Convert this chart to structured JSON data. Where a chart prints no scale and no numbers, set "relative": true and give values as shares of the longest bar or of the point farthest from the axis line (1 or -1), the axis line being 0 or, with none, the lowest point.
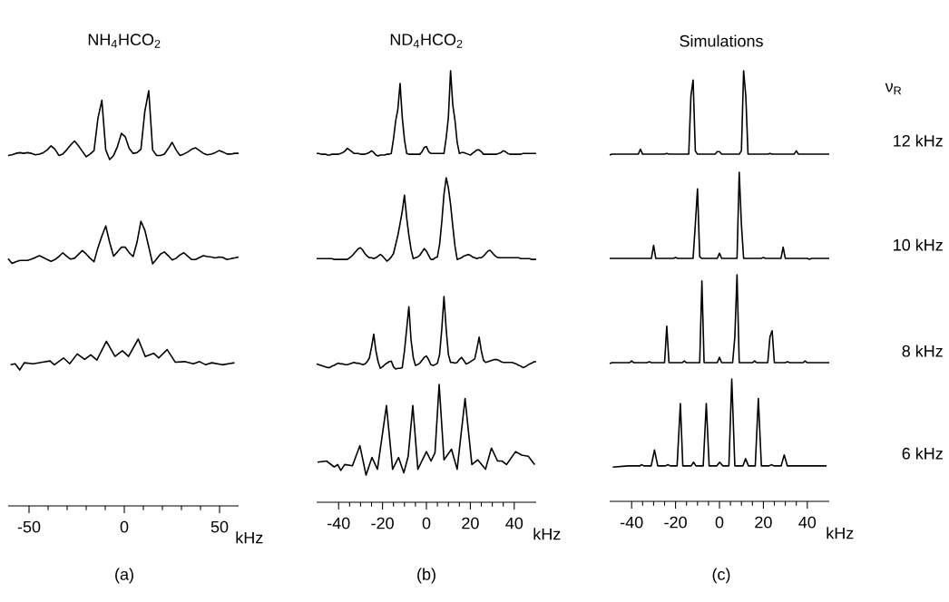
{
  "chart_data": [
    {
      "type": "line",
      "relative": true,
      "title": "NH$_{4}$HCO$_{2}$",
      "tick_labels": false,
      "color": "#000000",
      "categories": [
        null,
        null,
        null,
        null,
        null,
        null,
        null,
        null,
        null,
        null,
        null,
        null,
        null,
        null,
        null,
        null,
        null,
        null,
        null,
        null,
        null,
        null,
        null,
        null,
        null,
        null,
        null,
        null,
        null,
        null,
        null,
        null,
        null,
        null,
        null,
        null,
        null,
        null,
        null,
        null,
        null,
        null,
        null,
        null,
        null,
        null,
        null,
        null,
        null,
        null,
        null,
        null,
        null,
        null,
        null,
        null,
        null,
        null,
        null,
        null
      ],
      "values": [
        0.06,
        0.07,
        0.09,
        0.1,
        0.09,
        0.1,
        0.09,
        0.07,
        0.08,
        0.1,
        0.14,
        0.2,
        0.15,
        0.06,
        0.08,
        0.14,
        0.21,
        0.27,
        0.2,
        0.12,
        0.04,
        0.08,
        0.13,
        0.6,
        0.86,
        0.14,
        0.0,
        0.06,
        0.19,
        0.38,
        0.33,
        0.16,
        0.09,
        0.1,
        0.15,
        0.7,
        1.0,
        0.14,
        0.06,
        0.06,
        0.08,
        0.16,
        0.25,
        0.14,
        0.06,
        0.08,
        0.11,
        0.15,
        0.17,
        0.13,
        0.09,
        0.07,
        0.08,
        0.1,
        0.13,
        0.11,
        0.08,
        0.08,
        0.09,
        0.09
      ]
    },
    {
      "type": "line",
      "relative": true,
      "tick_labels": false,
      "color": "#000000",
      "categories": [
        null,
        null,
        null,
        null,
        null,
        null,
        null,
        null,
        null,
        null,
        null,
        null,
        null,
        null,
        null,
        null,
        null,
        null,
        null,
        null,
        null,
        null,
        null,
        null,
        null,
        null,
        null,
        null,
        null,
        null,
        null,
        null,
        null,
        null,
        null,
        null,
        null,
        null,
        null,
        null,
        null,
        null,
        null,
        null,
        null,
        null,
        null,
        null,
        null,
        null,
        null,
        null,
        null,
        null,
        null,
        null,
        null,
        null,
        null,
        null
      ],
      "values": [
        0.12,
        0.01,
        0.05,
        0.08,
        0.08,
        0.08,
        0.11,
        0.15,
        0.19,
        0.15,
        0.1,
        0.06,
        0.1,
        0.17,
        0.26,
        0.18,
        0.11,
        0.13,
        0.22,
        0.31,
        0.23,
        0.13,
        0.05,
        0.38,
        0.65,
        0.89,
        0.5,
        0.18,
        0.28,
        0.39,
        0.39,
        0.26,
        0.17,
        0.51,
        1.0,
        0.79,
        0.4,
        0.0,
        0.11,
        0.23,
        0.28,
        0.19,
        0.09,
        0.13,
        0.21,
        0.26,
        0.18,
        0.1,
        0.1,
        0.15,
        0.19,
        0.17,
        0.16,
        0.14,
        0.16,
        0.15,
        0.1,
        0.12,
        0.14,
        0.16
      ]
    },
    {
      "type": "line",
      "relative": true,
      "xlim": [
        -61,
        60
      ],
      "xticks": [
        -50,
        0,
        50
      ],
      "xlabel": "kHz",
      "tick_labels": "x",
      "annotations": [
        "(a)"
      ],
      "color": "#000000",
      "x": [
        -59.7,
        -57.3,
        -54.9,
        -52.5,
        -47.8,
        -43.0,
        -39.0,
        -36.7,
        -31.9,
        -28.7,
        -24.7,
        -20.8,
        -17.6,
        -14.4,
        -9.4,
        -4.9,
        -1.0,
        2.2,
        7.3,
        11.0,
        15.4,
        18.1,
        22.5,
        26.8,
        31.6,
        36.3,
        39.5,
        42.7,
        45.9,
        51.4,
        57.8
      ],
      "values": [
        0.846,
        0.852,
        0.815,
        0.858,
        0.852,
        0.861,
        0.869,
        0.846,
        0.887,
        0.852,
        0.911,
        0.878,
        0.906,
        0.874,
        0.987,
        0.896,
        0.93,
        0.896,
        1.0,
        0.896,
        0.915,
        0.887,
        0.937,
        0.861,
        0.865,
        0.852,
        0.865,
        0.846,
        0.858,
        0.846,
        0.858
      ]
    },
    {
      "type": "line",
      "relative": true,
      "title": "ND$_{4}$HCO$_{2}$",
      "tick_labels": false,
      "color": "#000000",
      "categories": [
        null,
        null,
        null,
        null,
        null,
        null,
        null,
        null,
        null,
        null,
        null,
        null,
        null,
        null,
        null,
        null,
        null,
        null,
        null,
        null,
        null,
        null,
        null,
        null,
        null,
        null,
        null,
        null,
        null,
        null,
        null,
        null,
        null,
        null,
        null,
        null,
        null,
        null,
        null,
        null,
        null,
        null,
        null,
        null,
        null,
        null,
        null,
        null,
        null,
        null,
        null,
        null,
        null,
        null,
        null,
        null,
        null,
        null,
        null,
        null,
        null,
        null,
        null,
        null,
        null,
        null,
        null,
        null,
        null,
        null,
        null,
        null,
        null,
        null,
        null,
        null,
        null,
        null,
        null,
        null,
        null,
        null,
        null,
        null,
        null,
        null,
        null,
        null,
        null,
        null,
        null,
        null,
        null,
        null,
        null,
        null,
        null,
        null,
        null,
        null,
        null
      ],
      "values": [
        0.03,
        0.03,
        0.02,
        0.02,
        0.02,
        0.01,
        0.01,
        0.02,
        0.02,
        0.02,
        0.02,
        0.03,
        0.04,
        0.06,
        0.09,
        0.07,
        0.05,
        0.03,
        0.03,
        0.03,
        0.02,
        0.02,
        0.02,
        0.03,
        0.04,
        0.06,
        0.04,
        0.01,
        0.0,
        0.01,
        0.01,
        0.01,
        0.02,
        0.02,
        0.03,
        0.2,
        0.41,
        0.55,
        0.85,
        0.45,
        0.19,
        0.03,
        0.02,
        0.02,
        0.02,
        0.02,
        0.02,
        0.02,
        0.05,
        0.1,
        0.11,
        0.05,
        0.03,
        0.03,
        0.03,
        0.03,
        0.03,
        0.03,
        0.03,
        0.21,
        0.45,
        1.0,
        0.6,
        0.42,
        0.16,
        0.03,
        0.04,
        0.04,
        0.03,
        0.02,
        0.01,
        0.03,
        0.05,
        0.07,
        0.07,
        0.05,
        0.02,
        0.02,
        0.02,
        0.02,
        0.02,
        0.02,
        0.02,
        0.03,
        0.04,
        0.06,
        0.05,
        0.03,
        0.02,
        0.02,
        0.02,
        0.02,
        0.02,
        0.02,
        0.03,
        0.03,
        0.03,
        0.03,
        0.03,
        0.03,
        0.03
      ]
    },
    {
      "type": "line",
      "relative": true,
      "tick_labels": false,
      "color": "#000000",
      "categories": [
        null,
        null,
        null,
        null,
        null,
        null,
        null,
        null,
        null,
        null,
        null,
        null,
        null,
        null,
        null,
        null,
        null,
        null,
        null,
        null,
        null,
        null,
        null,
        null,
        null,
        null,
        null,
        null,
        null,
        null,
        null,
        null,
        null,
        null,
        null,
        null,
        null,
        null,
        null,
        null,
        null,
        null,
        null,
        null,
        null,
        null,
        null,
        null,
        null,
        null,
        null,
        null,
        null,
        null,
        null,
        null,
        null,
        null,
        null,
        null,
        null,
        null,
        null,
        null,
        null,
        null,
        null,
        null,
        null,
        null,
        null,
        null,
        null,
        null,
        null,
        null,
        null,
        null,
        null,
        null,
        null,
        null,
        null,
        null,
        null,
        null,
        null,
        null,
        null,
        null,
        null,
        null,
        null,
        null,
        null,
        null,
        null,
        null,
        null,
        null,
        null
      ],
      "values": [
        0.03,
        0.03,
        0.03,
        0.03,
        0.03,
        0.03,
        0.03,
        0.03,
        0.02,
        0.02,
        0.02,
        0.02,
        0.02,
        0.02,
        0.02,
        0.04,
        0.06,
        0.09,
        0.12,
        0.15,
        0.16,
        0.13,
        0.09,
        0.06,
        0.04,
        0.04,
        0.03,
        0.04,
        0.06,
        0.08,
        0.06,
        0.03,
        0.0,
        0.02,
        0.05,
        0.09,
        0.2,
        0.31,
        0.45,
        0.6,
        0.79,
        0.52,
        0.31,
        0.14,
        0.03,
        0.04,
        0.05,
        0.07,
        0.11,
        0.15,
        0.12,
        0.07,
        0.02,
        0.02,
        0.04,
        0.05,
        0.2,
        0.47,
        0.8,
        1.0,
        0.88,
        0.68,
        0.42,
        0.18,
        0.02,
        0.03,
        0.04,
        0.06,
        0.07,
        0.08,
        0.07,
        0.05,
        0.04,
        0.03,
        0.04,
        0.04,
        0.06,
        0.09,
        0.12,
        0.13,
        0.1,
        0.07,
        0.05,
        0.04,
        0.04,
        0.04,
        0.04,
        0.04,
        0.04,
        0.04,
        0.04,
        0.04,
        0.04,
        0.03,
        0.03,
        0.03,
        0.03,
        0.03,
        0.02,
        0.02,
        0.02
      ]
    },
    {
      "type": "line",
      "relative": true,
      "tick_labels": false,
      "color": "#000000",
      "categories": [
        null,
        null,
        null,
        null,
        null,
        null,
        null,
        null,
        null,
        null,
        null,
        null,
        null,
        null,
        null,
        null,
        null,
        null,
        null,
        null,
        null,
        null,
        null,
        null,
        null,
        null,
        null,
        null,
        null,
        null,
        null,
        null,
        null,
        null,
        null,
        null,
        null,
        null,
        null,
        null,
        null,
        null,
        null,
        null,
        null,
        null,
        null,
        null,
        null,
        null,
        null,
        null,
        null,
        null,
        null,
        null,
        null,
        null,
        null,
        null,
        null,
        null,
        null,
        null,
        null,
        null,
        null,
        null,
        null,
        null,
        null,
        null,
        null,
        null,
        null,
        null,
        null,
        null,
        null,
        null,
        null,
        null,
        null,
        null,
        null,
        null,
        null,
        null,
        null,
        null,
        null,
        null,
        null,
        null,
        null,
        null,
        null,
        null,
        null,
        null,
        null
      ],
      "values": [
        0.07,
        0.06,
        0.05,
        0.04,
        0.03,
        0.02,
        0.02,
        0.04,
        0.05,
        0.07,
        0.08,
        0.07,
        0.07,
        0.06,
        0.06,
        0.07,
        0.08,
        0.09,
        0.08,
        0.08,
        0.07,
        0.06,
        0.07,
        0.1,
        0.15,
        0.3,
        0.48,
        0.25,
        0.1,
        0.01,
        0.03,
        0.06,
        0.08,
        0.1,
        0.11,
        0.03,
        0.0,
        0.01,
        0.01,
        0.02,
        0.25,
        0.55,
        0.86,
        0.4,
        0.16,
        0.05,
        0.06,
        0.08,
        0.12,
        0.16,
        0.18,
        0.13,
        0.06,
        0.05,
        0.06,
        0.08,
        0.2,
        0.55,
        1.0,
        0.55,
        0.2,
        0.09,
        0.09,
        0.08,
        0.09,
        0.13,
        0.16,
        0.12,
        0.07,
        0.08,
        0.1,
        0.12,
        0.14,
        0.28,
        0.44,
        0.25,
        0.12,
        0.09,
        0.1,
        0.11,
        0.12,
        0.13,
        0.13,
        0.12,
        0.1,
        0.09,
        0.09,
        0.09,
        0.09,
        0.09,
        0.08,
        0.07,
        0.05,
        0.04,
        0.02,
        0.03,
        0.05,
        0.07,
        0.08,
        0.1,
        0.1
      ]
    },
    {
      "type": "line",
      "relative": true,
      "xlim": [
        -50,
        50
      ],
      "xticks": [
        -40,
        -20,
        0,
        20,
        40
      ],
      "xlabel": "kHz",
      "tick_labels": "x",
      "annotations": [
        "(b)"
      ],
      "color": "#000000",
      "x": [
        -49.6,
        -45.5,
        -42.0,
        -40.4,
        -39.0,
        -37.2,
        -33.7,
        -30.3,
        -27.5,
        -24.8,
        -22.3,
        -18.2,
        -15.4,
        -12.7,
        -10.3,
        -8.3,
        -6.2,
        -3.9,
        0.0,
        2.1,
        3.9,
        5.8,
        8.0,
        11.4,
        14.0,
        17.6,
        20.7,
        23.4,
        26.9,
        29.6,
        32.4,
        34.4,
        36.5,
        40.6,
        43.4,
        46.4,
        49.3
      ],
      "values": [
        0.34,
        0.35,
        0.3,
        0.32,
        0.27,
        0.32,
        0.31,
        0.48,
        0.23,
        0.38,
        0.28,
        0.82,
        0.28,
        0.38,
        0.25,
        0.39,
        0.82,
        0.28,
        0.43,
        0.35,
        0.42,
        1.0,
        0.36,
        0.45,
        0.28,
        0.88,
        0.32,
        0.36,
        0.28,
        0.46,
        0.35,
        0.35,
        0.32,
        0.43,
        0.4,
        0.39,
        0.32
      ]
    },
    {
      "type": "line",
      "relative": true,
      "title": "Simulations",
      "tick_labels": false,
      "annotations": [
        "ν$_{R}$",
        "12 kHz"
      ],
      "color": "#000000",
      "categories": [
        null,
        null,
        null,
        null,
        null,
        null,
        null,
        null,
        null,
        null,
        null,
        null,
        null,
        null,
        null,
        null,
        null,
        null,
        null,
        null,
        null,
        null,
        null,
        null,
        null,
        null,
        null,
        null,
        null,
        null,
        null,
        null,
        null,
        null,
        null,
        null,
        null,
        null,
        null,
        null,
        null,
        null,
        null,
        null,
        null,
        null,
        null,
        null,
        null,
        null,
        null,
        null,
        null,
        null,
        null,
        null,
        null,
        null,
        null,
        null,
        null,
        null,
        null,
        null,
        null,
        null,
        null,
        null,
        null,
        null,
        null,
        null,
        null,
        null,
        null,
        null,
        null,
        null,
        null,
        null,
        null,
        null,
        null,
        null,
        null,
        null,
        null,
        null,
        null,
        null,
        null,
        null,
        null,
        null,
        null,
        null,
        null,
        null,
        null,
        null,
        null
      ],
      "values": [
        0.0,
        0.01,
        0.01,
        0.01,
        0.01,
        0.01,
        0.01,
        0.01,
        0.01,
        0.01,
        0.01,
        0.01,
        0.01,
        0.01,
        0.07,
        0.01,
        0.01,
        0.01,
        0.01,
        0.01,
        0.01,
        0.01,
        0.01,
        0.01,
        0.01,
        0.01,
        0.02,
        0.01,
        0.01,
        0.01,
        0.01,
        0.01,
        0.01,
        0.01,
        0.01,
        0.01,
        0.01,
        0.7,
        0.89,
        0.05,
        0.01,
        0.01,
        0.01,
        0.01,
        0.01,
        0.01,
        0.01,
        0.01,
        0.01,
        0.04,
        0.04,
        0.01,
        0.01,
        0.01,
        0.01,
        0.01,
        0.01,
        0.01,
        0.01,
        0.01,
        0.05,
        1.0,
        0.7,
        0.01,
        0.01,
        0.01,
        0.01,
        0.01,
        0.01,
        0.01,
        0.01,
        0.01,
        0.01,
        0.02,
        0.01,
        0.01,
        0.01,
        0.01,
        0.01,
        0.01,
        0.01,
        0.01,
        0.01,
        0.01,
        0.01,
        0.05,
        0.01,
        0.01,
        0.01,
        0.01,
        0.01,
        0.01,
        0.01,
        0.01,
        0.01,
        0.01,
        0.01,
        0.01,
        0.01,
        0.01,
        0.01
      ]
    },
    {
      "type": "line",
      "relative": true,
      "tick_labels": false,
      "annotations": [
        "10 kHz"
      ],
      "color": "#000000",
      "categories": [
        null,
        null,
        null,
        null,
        null,
        null,
        null,
        null,
        null,
        null,
        null,
        null,
        null,
        null,
        null,
        null,
        null,
        null,
        null,
        null,
        null,
        null,
        null,
        null,
        null,
        null,
        null,
        null,
        null,
        null,
        null,
        null,
        null,
        null,
        null,
        null,
        null,
        null,
        null,
        null,
        null,
        null,
        null,
        null,
        null,
        null,
        null,
        null,
        null,
        null,
        null,
        null,
        null,
        null,
        null,
        null,
        null,
        null,
        null,
        null,
        null,
        null,
        null,
        null,
        null,
        null,
        null,
        null,
        null,
        null,
        null,
        null,
        null,
        null,
        null,
        null,
        null,
        null,
        null,
        null,
        null,
        null,
        null,
        null,
        null,
        null,
        null,
        null,
        null,
        null,
        null,
        null,
        null,
        null,
        null,
        null,
        null,
        null,
        null,
        null,
        null
      ],
      "values": [
        0.01,
        0.01,
        0.01,
        0.01,
        0.01,
        0.01,
        0.01,
        0.01,
        0.01,
        0.01,
        0.01,
        0.01,
        0.01,
        0.01,
        0.01,
        0.01,
        0.01,
        0.01,
        0.01,
        0.01,
        0.16,
        0.01,
        0.01,
        0.01,
        0.01,
        0.01,
        0.01,
        0.01,
        0.01,
        0.01,
        0.02,
        0.01,
        0.01,
        0.01,
        0.01,
        0.01,
        0.01,
        0.01,
        0.01,
        0.4,
        0.81,
        0.03,
        0.01,
        0.01,
        0.01,
        0.01,
        0.01,
        0.01,
        0.01,
        0.01,
        0.07,
        0.01,
        0.01,
        0.01,
        0.01,
        0.01,
        0.01,
        0.01,
        0.01,
        1.0,
        0.4,
        0.01,
        0.01,
        0.01,
        0.01,
        0.01,
        0.01,
        0.01,
        0.01,
        0.01,
        0.02,
        0.01,
        0.01,
        0.01,
        0.01,
        0.01,
        0.01,
        0.01,
        0.01,
        0.14,
        0.01,
        0.01,
        0.01,
        0.01,
        0.01,
        0.01,
        0.01,
        0.01,
        0.01,
        0.01,
        0.01,
        0.0,
        0.01,
        0.01,
        0.01,
        0.01,
        0.01,
        0.01,
        0.01,
        0.01,
        0.01
      ]
    },
    {
      "type": "line",
      "relative": true,
      "tick_labels": false,
      "annotations": [
        "8 kHz"
      ],
      "color": "#000000",
      "categories": [
        null,
        null,
        null,
        null,
        null,
        null,
        null,
        null,
        null,
        null,
        null,
        null,
        null,
        null,
        null,
        null,
        null,
        null,
        null,
        null,
        null,
        null,
        null,
        null,
        null,
        null,
        null,
        null,
        null,
        null,
        null,
        null,
        null,
        null,
        null,
        null,
        null,
        null,
        null,
        null,
        null,
        null,
        null,
        null,
        null,
        null,
        null,
        null,
        null,
        null,
        null,
        null,
        null,
        null,
        null,
        null,
        null,
        null,
        null,
        null,
        null,
        null,
        null,
        null,
        null,
        null,
        null,
        null,
        null,
        null,
        null,
        null,
        null,
        null,
        null,
        null,
        null,
        null,
        null,
        null,
        null,
        null,
        null,
        null,
        null,
        null,
        null,
        null,
        null,
        null,
        null,
        null,
        null,
        null,
        null,
        null,
        null,
        null,
        null,
        null,
        null
      ],
      "values": [
        0.0,
        0.01,
        0.01,
        0.01,
        0.01,
        0.01,
        0.01,
        0.01,
        0.01,
        0.01,
        0.03,
        0.01,
        0.01,
        0.01,
        0.01,
        0.01,
        0.01,
        0.01,
        0.02,
        0.01,
        0.01,
        0.01,
        0.01,
        0.01,
        0.01,
        0.01,
        0.42,
        0.01,
        0.01,
        0.01,
        0.01,
        0.01,
        0.01,
        0.01,
        0.03,
        0.01,
        0.01,
        0.01,
        0.01,
        0.01,
        0.01,
        0.01,
        0.93,
        0.01,
        0.01,
        0.01,
        0.01,
        0.01,
        0.01,
        0.01,
        0.07,
        0.01,
        0.01,
        0.01,
        0.01,
        0.01,
        0.01,
        0.3,
        1.0,
        0.01,
        0.01,
        0.01,
        0.01,
        0.01,
        0.01,
        0.01,
        0.03,
        0.01,
        0.01,
        0.01,
        0.01,
        0.01,
        0.01,
        0.3,
        0.37,
        0.01,
        0.01,
        0.01,
        0.01,
        0.01,
        0.01,
        0.02,
        0.01,
        0.01,
        0.01,
        0.01,
        0.01,
        0.01,
        0.01,
        0.03,
        0.01,
        0.01,
        0.01,
        0.01,
        0.01,
        0.01,
        0.01,
        0.01,
        0.01,
        0.01,
        0.01
      ]
    },
    {
      "type": "line",
      "relative": true,
      "xlim": [
        -50,
        50
      ],
      "xticks": [
        -40,
        -20,
        0,
        20,
        40
      ],
      "xlabel": "kHz",
      "tick_labels": "x",
      "annotations": [
        "6 kHz",
        "(c)"
      ],
      "color": "#000000",
      "x": [
        -48.6,
        -41.7,
        -40.3,
        -36.2,
        -35.5,
        -34.4,
        -31.1,
        -29.6,
        -28.1,
        -24.6,
        -23.5,
        -22.4,
        -19.3,
        -17.8,
        -16.7,
        -12.9,
        -11.8,
        -10.7,
        -7.4,
        -6.0,
        -4.7,
        -1.2,
        0.1,
        1.5,
        4.3,
        5.6,
        7.0,
        10.7,
        11.9,
        13.2,
        16.3,
        17.7,
        19.1,
        22.6,
        23.7,
        24.8,
        28.1,
        29.5,
        30.9,
        48.8
      ],
      "values": [
        0.28,
        0.29,
        0.29,
        0.29,
        0.3,
        0.29,
        0.29,
        0.42,
        0.29,
        0.29,
        0.3,
        0.29,
        0.29,
        0.8,
        0.29,
        0.29,
        0.32,
        0.29,
        0.29,
        0.8,
        0.29,
        0.29,
        0.32,
        0.29,
        0.29,
        1.0,
        0.29,
        0.29,
        0.35,
        0.29,
        0.29,
        0.84,
        0.29,
        0.29,
        0.3,
        0.29,
        0.29,
        0.38,
        0.29,
        0.29
      ]
    }
  ]
}
